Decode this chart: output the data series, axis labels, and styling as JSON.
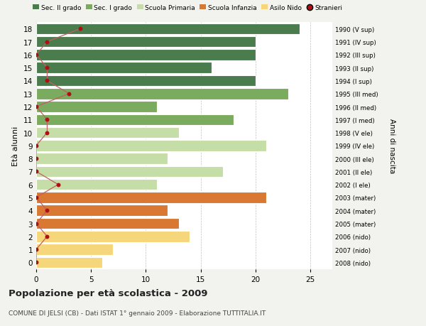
{
  "ages": [
    18,
    17,
    16,
    15,
    14,
    13,
    12,
    11,
    10,
    9,
    8,
    7,
    6,
    5,
    4,
    3,
    2,
    1,
    0
  ],
  "values": [
    24,
    20,
    20,
    16,
    20,
    23,
    11,
    18,
    13,
    21,
    12,
    17,
    11,
    21,
    12,
    13,
    14,
    7,
    6
  ],
  "stranieri": [
    4,
    1,
    0,
    1,
    1,
    3,
    0,
    1,
    1,
    0,
    0,
    0,
    2,
    0,
    1,
    0,
    1,
    0,
    0
  ],
  "right_labels": [
    "1990 (V sup)",
    "1991 (IV sup)",
    "1992 (III sup)",
    "1993 (II sup)",
    "1994 (I sup)",
    "1995 (III med)",
    "1996 (II med)",
    "1997 (I med)",
    "1998 (V ele)",
    "1999 (IV ele)",
    "2000 (III ele)",
    "2001 (II ele)",
    "2002 (I ele)",
    "2003 (mater)",
    "2004 (mater)",
    "2005 (mater)",
    "2006 (nido)",
    "2007 (nido)",
    "2008 (nido)"
  ],
  "legend_colors": {
    "Sec. II grado": "#4a7c4e",
    "Sec. I grado": "#7aab5e",
    "Scuola Primaria": "#c5dea8",
    "Scuola Infanzia": "#d97832",
    "Asilo Nido": "#f5d67a",
    "Stranieri": "#aa1111"
  },
  "title": "Popolazione per età scolastica - 2009",
  "subtitle": "COMUNE DI JELSI (CB) - Dati ISTAT 1° gennaio 2009 - Elaborazione TUTTITALIA.IT",
  "ylabel": "Età alunni",
  "right_ylabel": "Anni di nascita",
  "xlim": [
    0,
    27
  ],
  "background_color": "#f2f2ee",
  "plot_bg": "#ffffff",
  "stranieri_color": "#aa1111",
  "stranieri_line_color": "#c06060"
}
